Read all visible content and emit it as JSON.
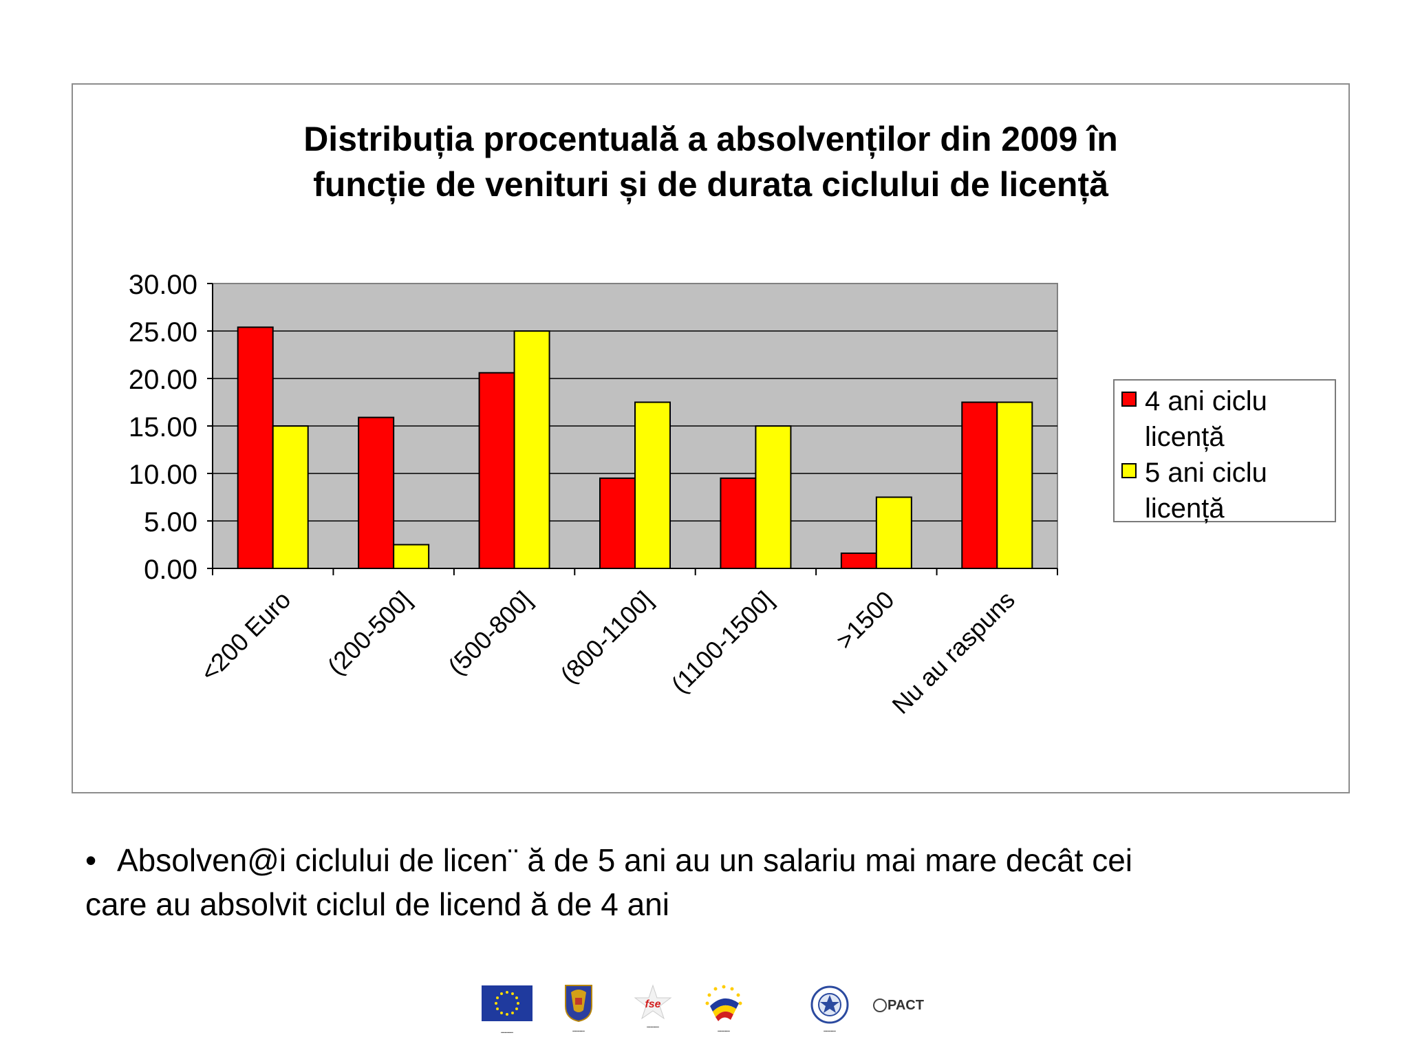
{
  "chart_data": {
    "type": "bar",
    "title": "Distribuția procentuală a absolvenților din 2009 în funcție de venituri și de durata ciclului de licență",
    "title_lines": [
      "Distribuția procentuală a absolvenților din 2009 în",
      "funcție de venituri și de durata ciclului de licență"
    ],
    "xlabel": "",
    "ylabel": "",
    "categories": [
      "<200 Euro",
      "(200-500]",
      "(500-800]",
      "(800-1100]",
      "(1100-1500]",
      ">1500",
      "Nu au raspuns"
    ],
    "series": [
      {
        "name": "4 ani ciclu licență",
        "name_lines": [
          "4 ani ciclu",
          "licență"
        ],
        "color": "#ff0000",
        "values": [
          25.4,
          15.9,
          20.6,
          9.5,
          9.5,
          1.6,
          17.5
        ]
      },
      {
        "name": "5 ani ciclu licență",
        "name_lines": [
          "5 ani ciclu",
          "licență"
        ],
        "color": "#ffff00",
        "values": [
          15.0,
          2.5,
          25.0,
          17.5,
          15.0,
          7.5,
          17.5
        ]
      }
    ],
    "ylim": [
      0,
      30
    ],
    "yticks": [
      "0.00",
      "5.00",
      "10.00",
      "15.00",
      "20.00",
      "25.00",
      "30.00"
    ],
    "grid": true,
    "plot_background": "#c0c0c0",
    "legend_position": "right"
  },
  "body_text": {
    "bullet": "•",
    "line1": "Absolven@i ciclului de licen¨ ă de 5 ani au un salariu mai mare decât cei",
    "line2": "care au absolvit ciclul de licend ă de 4 ani"
  },
  "logos": {
    "pact": "PACT"
  }
}
